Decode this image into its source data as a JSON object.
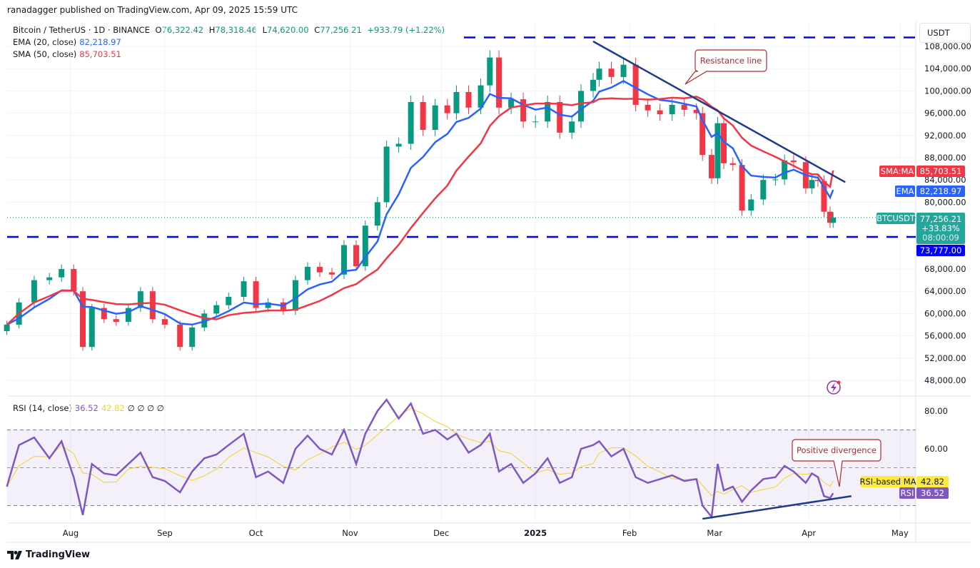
{
  "publisher_line": "ranadagger published on TradingView.com, Apr 09, 2025 15:59 UTC",
  "legend": {
    "symbol": "Bitcoin / TetherUS · 1D · BINANCE",
    "open_label": "O",
    "open": "76,322.42",
    "high_label": "H",
    "high": "78,318.46",
    "low_label": "L",
    "low": "74,620.00",
    "close_label": "C",
    "close": "77,256.21",
    "change": "+933.79 (+1.22%)",
    "ema_label": "EMA (20, close)",
    "ema_value": "82,218.97",
    "sma_label": "SMA (50, close)",
    "sma_value": "85,703.51",
    "rsi_label": "RSI (14, close)",
    "rsi_value": "36.52",
    "rsi_ma_value": "42.82",
    "rsi_extra": "∅  ∅  ∅  ∅"
  },
  "currency_button": "USDT",
  "price_tags": {
    "sma_name": "SMA:MA",
    "sma": "85,703.51",
    "ema_name": "EMA",
    "ema": "82,218.97",
    "symbol_name": "BTCUSDT",
    "last": "77,256.21",
    "last_change": "+33.83%",
    "countdown": "08:00:09",
    "support": "73,777.00",
    "rsi_ma_name": "RSI-based MA",
    "rsi_ma": "42.82",
    "rsi_name": "RSI",
    "rsi": "36.52"
  },
  "annotations": {
    "resistance": "Resistance line",
    "divergence": "Positive divergence"
  },
  "branding": "TradingView",
  "colors": {
    "up": "#089981",
    "down": "#f23645",
    "ema": "#2962ff",
    "sma": "#f23645",
    "rsi": "#7e57c2",
    "rsi_ma": "#f5d327",
    "levels": "#0000ff",
    "trendline": "#1e3a8a",
    "callout": "#b22833"
  },
  "icons": {
    "lightning": "lightning-icon",
    "logo": "tradingview-logo-icon"
  },
  "chart_data": [
    {
      "type": "candlestick",
      "title": "Bitcoin / TetherUS · 1D · BINANCE",
      "ylim": [
        46000,
        110000
      ],
      "yticks": [
        108000,
        104000,
        100000,
        96000,
        92000,
        88000,
        84000,
        80000,
        68000,
        64000,
        60000,
        56000,
        52000,
        48000
      ],
      "xtick_labels": [
        [
          "2024-08-01",
          "Aug"
        ],
        [
          "2024-09-01",
          "Sep"
        ],
        [
          "2024-10-01",
          "Oct"
        ],
        [
          "2024-11-01",
          "Nov"
        ],
        [
          "2024-12-01",
          "Dec"
        ],
        [
          "2025-01-01",
          "2025"
        ],
        [
          "2025-02-01",
          "Feb"
        ],
        [
          "2025-03-01",
          "Mar"
        ],
        [
          "2025-04-01",
          "Apr"
        ],
        [
          "2025-05-01",
          "May"
        ]
      ],
      "xlim": [
        "2024-07-11",
        "2025-05-05"
      ],
      "dates": [
        "2024-07-11",
        "2024-07-15",
        "2024-07-20",
        "2024-07-25",
        "2024-07-29",
        "2024-08-02",
        "2024-08-05",
        "2024-08-08",
        "2024-08-12",
        "2024-08-16",
        "2024-08-20",
        "2024-08-24",
        "2024-08-28",
        "2024-09-01",
        "2024-09-06",
        "2024-09-10",
        "2024-09-14",
        "2024-09-18",
        "2024-09-22",
        "2024-09-27",
        "2024-10-01",
        "2024-10-05",
        "2024-10-10",
        "2024-10-14",
        "2024-10-18",
        "2024-10-22",
        "2024-10-26",
        "2024-10-30",
        "2024-11-03",
        "2024-11-06",
        "2024-11-10",
        "2024-11-13",
        "2024-11-17",
        "2024-11-21",
        "2024-11-25",
        "2024-11-29",
        "2024-12-03",
        "2024-12-06",
        "2024-12-10",
        "2024-12-14",
        "2024-12-17",
        "2024-12-20",
        "2024-12-24",
        "2024-12-28",
        "2025-01-01",
        "2025-01-05",
        "2025-01-09",
        "2025-01-13",
        "2025-01-16",
        "2025-01-20",
        "2025-01-22",
        "2025-01-26",
        "2025-01-30",
        "2025-02-03",
        "2025-02-07",
        "2025-02-11",
        "2025-02-15",
        "2025-02-19",
        "2025-02-23",
        "2025-02-25",
        "2025-02-28",
        "2025-03-02",
        "2025-03-04",
        "2025-03-07",
        "2025-03-10",
        "2025-03-13",
        "2025-03-17",
        "2025-03-21",
        "2025-03-24",
        "2025-03-27",
        "2025-03-31",
        "2025-04-02",
        "2025-04-04",
        "2025-04-06",
        "2025-04-08",
        "2025-04-09"
      ],
      "close": [
        58000,
        62000,
        66000,
        66500,
        68000,
        64000,
        54000,
        61000,
        59000,
        58500,
        61000,
        64000,
        59000,
        58000,
        54000,
        57500,
        60000,
        61500,
        63000,
        65800,
        61000,
        62000,
        60500,
        66000,
        68400,
        67400,
        67000,
        72300,
        68500,
        75800,
        80000,
        90000,
        90500,
        98000,
        93000,
        97400,
        96000,
        99800,
        97000,
        101000,
        106000,
        97000,
        98500,
        94500,
        94500,
        98000,
        92500,
        94500,
        100000,
        102000,
        104000,
        102500,
        104700,
        97500,
        96500,
        95800,
        97500,
        96600,
        96000,
        88500,
        84300,
        94200,
        87000,
        86700,
        78500,
        80500,
        84000,
        84100,
        87500,
        87200,
        82500,
        84000,
        83800,
        78300,
        76300,
        77256.21
      ],
      "lines": [
        {
          "name": "EMA (20, close)",
          "last": 82218.97
        },
        {
          "name": "SMA (50, close)",
          "last": 85703.51
        }
      ],
      "horizontal_levels": [
        109600,
        73777
      ],
      "trendline": {
        "label": "Resistance line",
        "from": [
          "2025-01-20",
          108900
        ],
        "to": [
          "2025-04-13",
          83600
        ]
      }
    },
    {
      "type": "line",
      "title": "RSI (14, close)",
      "ylim": [
        15,
        88
      ],
      "yticks": [
        80,
        60
      ],
      "bands": [
        30,
        50,
        70
      ],
      "series": [
        {
          "name": "RSI",
          "values": [
            40,
            62,
            66,
            55,
            64,
            45,
            25,
            52,
            47,
            46,
            52,
            58,
            45,
            43,
            37,
            48,
            55,
            57,
            62,
            68,
            45,
            48,
            42,
            60,
            67,
            60,
            57,
            70,
            52,
            68,
            80,
            86,
            76,
            84,
            68,
            70,
            65,
            68,
            58,
            62,
            68,
            48,
            52,
            42,
            47,
            55,
            42,
            45,
            60,
            62,
            64,
            56,
            60,
            45,
            42,
            44,
            46,
            43,
            44,
            30,
            24,
            52,
            38,
            40,
            32,
            38,
            44,
            45,
            51,
            48,
            42,
            47,
            45,
            35,
            34,
            36.52
          ]
        }
      ],
      "rsi_ma_last": 42.82,
      "trendline": {
        "label": "Positive divergence",
        "from": [
          "2025-02-25",
          23
        ],
        "to": [
          "2025-04-15",
          35
        ]
      }
    }
  ]
}
